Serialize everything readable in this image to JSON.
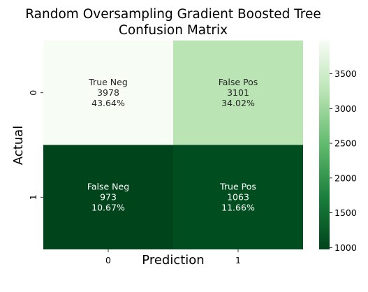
{
  "chart_data": {
    "type": "heatmap",
    "title_lines": [
      "Random Oversampling Gradient Boosted Tree",
      "Confusion Matrix"
    ],
    "xlabel": "Prediction",
    "ylabel": "Actual",
    "x_categories": [
      "0",
      "1"
    ],
    "y_categories": [
      "0",
      "1"
    ],
    "values": [
      [
        3978,
        3101
      ],
      [
        973,
        1063
      ]
    ],
    "cell_labels": [
      [
        [
          "True Neg",
          "3978",
          "43.64%"
        ],
        [
          "False Pos",
          "3101",
          "34.02%"
        ]
      ],
      [
        [
          "False Neg",
          "973",
          "10.67%"
        ],
        [
          "True Pos",
          "1063",
          "11.66%"
        ]
      ]
    ],
    "colormap": "Greens_r",
    "colorbar_range": [
      973,
      3978
    ],
    "colorbar_ticks": [
      "1000",
      "1500",
      "2000",
      "2500",
      "3000",
      "3500"
    ],
    "dark_text_color": "#262626",
    "light_text_color": "#ffffff"
  }
}
